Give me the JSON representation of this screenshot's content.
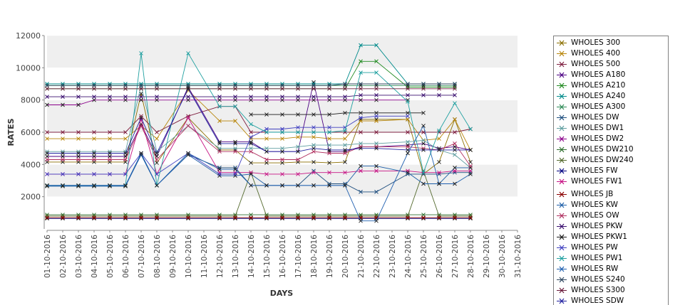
{
  "chart_data": {
    "type": "line",
    "xlabel": "DAYS",
    "ylabel": "RATES",
    "ylim": [
      0,
      12000
    ],
    "yticks": [
      2000,
      4000,
      6000,
      8000,
      10000,
      12000
    ],
    "grid": "horizontal bands",
    "legend_position": "right",
    "categories": [
      "01-10-2016",
      "02-10-2016",
      "03-10-2016",
      "04-10-2016",
      "05-10-2016",
      "06-10-2016",
      "07-10-2016",
      "08-10-2016",
      "09-10-2016",
      "10-10-2016",
      "11-10-2016",
      "12-10-2016",
      "13-10-2016",
      "14-10-2016",
      "15-10-2016",
      "16-10-2016",
      "17-10-2016",
      "18-10-2016",
      "19-10-2016",
      "20-10-2016",
      "21-10-2016",
      "22-10-2016",
      "23-10-2016",
      "24-10-2016",
      "25-10-2016",
      "26-10-2016",
      "27-10-2016",
      "28-10-2016",
      "29-10-2016",
      "30-10-2016",
      "31-10-2016"
    ],
    "series": [
      {
        "name": "WHOLES 300",
        "color": "#8b6f00",
        "values": [
          4150,
          4150,
          4150,
          4150,
          4150,
          4150,
          8400,
          4100,
          null,
          6900,
          null,
          4900,
          4900,
          4100,
          4100,
          4100,
          4150,
          4150,
          4100,
          4150,
          6800,
          6800,
          null,
          6800,
          3400,
          4150,
          6800,
          4150,
          null,
          null,
          null
        ]
      },
      {
        "name": "WHOLES 400",
        "color": "#b8860b",
        "values": [
          5600,
          5600,
          5600,
          5600,
          5600,
          5600,
          6400,
          5600,
          null,
          8600,
          null,
          6700,
          6700,
          5600,
          5600,
          5600,
          5700,
          5700,
          5600,
          5600,
          6700,
          6700,
          null,
          6800,
          5500,
          5600,
          6800,
          4900,
          null,
          null,
          null
        ]
      },
      {
        "name": "WHOLES 500",
        "color": "#7f2040",
        "values": [
          6000,
          6000,
          6000,
          6000,
          6000,
          6000,
          7000,
          6000,
          null,
          7000,
          null,
          7600,
          7600,
          6000,
          6000,
          6000,
          6000,
          6000,
          6000,
          6000,
          6000,
          6000,
          null,
          6000,
          6000,
          6000,
          6000,
          6200,
          null,
          null,
          null
        ]
      },
      {
        "name": "WHOLES A180",
        "color": "#4b0082",
        "values": [
          4500,
          4500,
          4500,
          4500,
          4500,
          4500,
          6500,
          4500,
          null,
          8800,
          null,
          5400,
          5400,
          5400,
          4800,
          4800,
          4800,
          9100,
          4800,
          4800,
          5100,
          5100,
          null,
          5200,
          5300,
          5000,
          5100,
          4900,
          null,
          null,
          null
        ]
      },
      {
        "name": "WHOLES A210",
        "color": "#228b22",
        "values": [
          8700,
          8700,
          8700,
          8700,
          8700,
          8700,
          8700,
          8700,
          null,
          8700,
          null,
          8700,
          8700,
          8700,
          8700,
          8700,
          8700,
          8700,
          8700,
          8700,
          10400,
          10400,
          null,
          8800,
          8800,
          8800,
          8800,
          null,
          null,
          null,
          null
        ]
      },
      {
        "name": "WHOLES A240",
        "color": "#008b8b",
        "values": [
          9000,
          9000,
          9000,
          9000,
          9000,
          9000,
          9000,
          9000,
          null,
          9000,
          null,
          9000,
          9000,
          9000,
          9000,
          9000,
          9000,
          9000,
          9000,
          9000,
          11400,
          11400,
          null,
          9000,
          9000,
          9000,
          9000,
          null,
          null,
          null,
          null
        ]
      },
      {
        "name": "WHOLES A300",
        "color": "#2e8b57",
        "values": [
          8900,
          8900,
          8900,
          8900,
          8900,
          8900,
          8900,
          8900,
          null,
          8900,
          null,
          8900,
          8900,
          8900,
          8900,
          8900,
          8900,
          8900,
          8900,
          8900,
          8900,
          8900,
          null,
          8900,
          8900,
          8900,
          8900,
          null,
          null,
          null,
          null
        ]
      },
      {
        "name": "WHOLES DW",
        "color": "#1f4f7f",
        "values": [
          2700,
          2700,
          2700,
          2700,
          2700,
          2700,
          4600,
          2700,
          null,
          4600,
          null,
          3800,
          3800,
          2700,
          2700,
          2700,
          2700,
          3600,
          2800,
          2800,
          2300,
          2300,
          null,
          3400,
          3400,
          3400,
          3500,
          3500,
          null,
          null,
          null
        ]
      },
      {
        "name": "WHOLES DW1",
        "color": "#5f9ea0",
        "values": [
          4800,
          4800,
          4800,
          4800,
          4800,
          4800,
          8900,
          4800,
          null,
          6400,
          null,
          5000,
          5000,
          5000,
          5000,
          5000,
          5100,
          5200,
          5200,
          5200,
          5300,
          5300,
          null,
          5400,
          5500,
          4900,
          4600,
          3800,
          null,
          null,
          null
        ]
      },
      {
        "name": "WHOLES DW2",
        "color": "#8b008b",
        "values": [
          7700,
          7700,
          7700,
          8000,
          8000,
          8000,
          8000,
          8000,
          null,
          8000,
          null,
          8000,
          8000,
          8000,
          8000,
          8000,
          8000,
          8000,
          8000,
          8000,
          8000,
          8000,
          null,
          8000,
          null,
          null,
          null,
          null,
          null,
          null,
          null
        ]
      },
      {
        "name": "WHOLES DW210",
        "color": "#2f6f2f",
        "values": [
          880,
          880,
          880,
          880,
          880,
          880,
          880,
          880,
          null,
          880,
          null,
          880,
          880,
          880,
          880,
          880,
          880,
          880,
          880,
          880,
          880,
          880,
          null,
          880,
          880,
          880,
          880,
          880,
          null,
          null,
          null
        ]
      },
      {
        "name": "WHOLES DW240",
        "color": "#556b2f",
        "values": [
          800,
          800,
          800,
          800,
          800,
          800,
          800,
          800,
          null,
          800,
          null,
          800,
          800,
          3500,
          800,
          800,
          800,
          800,
          800,
          800,
          800,
          800,
          null,
          800,
          3600,
          800,
          800,
          800,
          null,
          null,
          null
        ]
      },
      {
        "name": "WHOLES FW",
        "color": "#000080",
        "values": [
          650,
          650,
          650,
          650,
          650,
          650,
          650,
          650,
          null,
          650,
          null,
          650,
          650,
          650,
          650,
          650,
          650,
          650,
          650,
          650,
          650,
          650,
          null,
          650,
          650,
          650,
          650,
          650,
          null,
          null,
          null
        ]
      },
      {
        "name": "WHOLES FW1",
        "color": "#c71585",
        "values": [
          3400,
          3400,
          3400,
          3400,
          3400,
          3400,
          6800,
          3400,
          null,
          6900,
          null,
          3500,
          3500,
          3500,
          3400,
          3400,
          3400,
          3500,
          3500,
          3500,
          3600,
          3600,
          null,
          3600,
          3500,
          3500,
          3600,
          3600,
          null,
          null,
          null
        ]
      },
      {
        "name": "WHOLES JB",
        "color": "#8b0000",
        "values": [
          700,
          700,
          700,
          700,
          700,
          700,
          700,
          700,
          null,
          700,
          null,
          700,
          700,
          700,
          700,
          700,
          700,
          700,
          700,
          700,
          700,
          700,
          null,
          700,
          700,
          700,
          700,
          700,
          null,
          null,
          null
        ]
      },
      {
        "name": "WHOLES KW",
        "color": "#1e5fa8",
        "values": [
          2650,
          2650,
          2650,
          2650,
          2650,
          2650,
          4600,
          2700,
          null,
          4600,
          null,
          3300,
          3300,
          3400,
          2700,
          2700,
          2700,
          2700,
          2700,
          2700,
          3900,
          3900,
          null,
          3500,
          2800,
          2800,
          3800,
          3800,
          null,
          null,
          null
        ]
      },
      {
        "name": "WHOLES OW",
        "color": "#b03060",
        "values": [
          4300,
          4300,
          4300,
          4300,
          4300,
          4300,
          6400,
          4300,
          null,
          6400,
          null,
          4800,
          4800,
          4800,
          4300,
          4300,
          4300,
          4800,
          4700,
          4700,
          5100,
          5100,
          null,
          5100,
          5000,
          4900,
          5300,
          3900,
          null,
          null,
          null
        ]
      },
      {
        "name": "WHOLES PKW",
        "color": "#3a0f6f",
        "values": [
          8200,
          8200,
          8200,
          8200,
          8200,
          8200,
          8200,
          8200,
          null,
          8200,
          null,
          8200,
          8200,
          8200,
          8200,
          8200,
          8200,
          8200,
          8200,
          8200,
          8300,
          8300,
          null,
          8300,
          8300,
          8300,
          8300,
          null,
          null,
          null,
          null
        ]
      },
      {
        "name": "WHOLES PKW1",
        "color": "#1a1a1a",
        "values": [
          null,
          null,
          null,
          null,
          null,
          null,
          null,
          null,
          null,
          null,
          null,
          null,
          null,
          7100,
          7100,
          7100,
          7100,
          7100,
          7100,
          7200,
          7200,
          7200,
          null,
          7200,
          7200,
          null,
          null,
          null,
          null,
          null,
          null
        ]
      },
      {
        "name": "WHOLES PW",
        "color": "#4040c0",
        "values": [
          3400,
          3400,
          3400,
          3400,
          3400,
          3400,
          4700,
          3400,
          null,
          4700,
          null,
          3400,
          3400,
          5700,
          6200,
          6200,
          6300,
          6300,
          6300,
          6300,
          6900,
          7000,
          null,
          7000,
          null,
          null,
          null,
          null,
          null,
          null,
          null
        ]
      },
      {
        "name": "WHOLES PW1",
        "color": "#20a0a0",
        "values": [
          2700,
          2700,
          2700,
          2700,
          2700,
          2700,
          10900,
          2700,
          null,
          10900,
          null,
          7600,
          7600,
          6500,
          6000,
          6000,
          6000,
          6000,
          6000,
          6100,
          9700,
          9700,
          null,
          7900,
          3500,
          6100,
          7800,
          6200,
          null,
          null,
          null
        ]
      },
      {
        "name": "WHOLES RW",
        "color": "#2060b0",
        "values": [
          2700,
          2700,
          2700,
          2700,
          2700,
          2700,
          4700,
          2700,
          null,
          4700,
          null,
          3700,
          3700,
          2700,
          2700,
          2700,
          2700,
          2700,
          2700,
          2700,
          500,
          500,
          null,
          4700,
          6400,
          2800,
          2800,
          3400,
          null,
          null,
          null
        ]
      },
      {
        "name": "WHOLES S240",
        "color": "#304860",
        "values": [
          8900,
          8900,
          8900,
          8900,
          8900,
          8900,
          8900,
          8900,
          null,
          8900,
          null,
          8900,
          8900,
          8900,
          8900,
          8900,
          8900,
          8900,
          8900,
          9000,
          9000,
          9000,
          null,
          9000,
          9000,
          9000,
          9000,
          null,
          null,
          null,
          null
        ]
      },
      {
        "name": "WHOLES S300",
        "color": "#6a1a3a",
        "values": [
          8700,
          8700,
          8700,
          8700,
          8700,
          8700,
          8700,
          8700,
          null,
          8700,
          null,
          8700,
          8700,
          8700,
          8700,
          8700,
          8700,
          8700,
          8700,
          8700,
          8700,
          8700,
          null,
          8700,
          8700,
          8700,
          8700,
          null,
          null,
          null,
          null
        ]
      },
      {
        "name": "WHOLES SDW",
        "color": "#2020a0",
        "values": [
          4700,
          4700,
          4700,
          4700,
          4700,
          4700,
          6900,
          4700,
          null,
          8700,
          null,
          5300,
          5300,
          5300,
          4800,
          4800,
          4800,
          5000,
          4900,
          4900,
          5000,
          5000,
          null,
          4900,
          4900,
          4900,
          4900,
          4900,
          null,
          null,
          null
        ]
      }
    ]
  }
}
